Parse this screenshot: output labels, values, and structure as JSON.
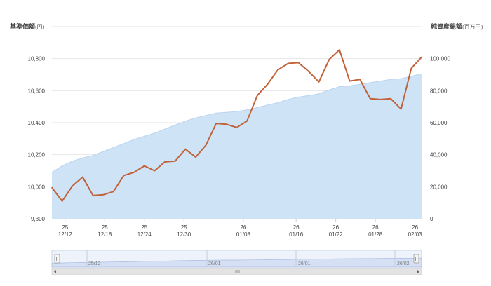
{
  "left_axis": {
    "title": "基準価額",
    "unit": "(円)"
  },
  "right_axis": {
    "title": "純資産総額",
    "unit": "(百万円)"
  },
  "colors": {
    "price_line": "#c0623a",
    "assets_fill": "#cfe3f7",
    "assets_stroke": "#b9d4f1",
    "grid": "#e6e6e6",
    "navigator_fill": "#d6e0f5",
    "navigator_bg": "#eef3fb",
    "scrollbar": "#e3e3e3"
  },
  "navigator": {
    "labels": [
      "25/12",
      "26/01",
      "26/01",
      "26/02"
    ]
  },
  "chart_data": {
    "type": "line",
    "x_tick_labels": [
      {
        "year": "25",
        "date": "12/12"
      },
      {
        "year": "25",
        "date": "12/18"
      },
      {
        "year": "25",
        "date": "12/24"
      },
      {
        "year": "25",
        "date": "12/30"
      },
      {
        "year": "26",
        "date": "01/08"
      },
      {
        "year": "26",
        "date": "01/16"
      },
      {
        "year": "26",
        "date": "01/22"
      },
      {
        "year": "26",
        "date": "01/28"
      },
      {
        "year": "26",
        "date": "02/03"
      }
    ],
    "tick_day_indices": [
      2,
      8,
      14,
      20,
      29,
      37,
      43,
      49,
      55
    ],
    "day_count": 56,
    "y_left": {
      "min": 9800,
      "max": 11000,
      "ticks": [
        9800,
        10000,
        10200,
        10400,
        10600,
        10800
      ]
    },
    "y_right": {
      "min": 0,
      "max": 120000,
      "ticks": [
        0,
        20000,
        40000,
        60000,
        80000,
        100000
      ]
    },
    "series": [
      {
        "axis": "left",
        "type": "line",
        "points": [
          [
            0,
            9995
          ],
          [
            2,
            9910
          ],
          [
            4,
            10005
          ],
          [
            6,
            10060
          ],
          [
            8,
            9945
          ],
          [
            10,
            9950
          ],
          [
            12,
            9970
          ],
          [
            14,
            10070
          ],
          [
            16,
            10090
          ],
          [
            18,
            10130
          ],
          [
            20,
            10100
          ],
          [
            22,
            10155
          ],
          [
            24,
            10160
          ],
          [
            26,
            10235
          ],
          [
            28,
            10185
          ],
          [
            30,
            10260
          ],
          [
            32,
            10395
          ],
          [
            34,
            10390
          ],
          [
            36,
            10370
          ],
          [
            38,
            10410
          ],
          [
            40,
            10570
          ],
          [
            42,
            10640
          ],
          [
            44,
            10730
          ],
          [
            46,
            10770
          ],
          [
            48,
            10775
          ],
          [
            50,
            10720
          ],
          [
            52,
            10655
          ],
          [
            54,
            10795
          ],
          [
            56,
            10855
          ],
          [
            58,
            10660
          ],
          [
            60,
            10670
          ],
          [
            62,
            10550
          ],
          [
            64,
            10545
          ],
          [
            66,
            10550
          ],
          [
            68,
            10485
          ],
          [
            70,
            10740
          ],
          [
            72,
            10810
          ]
        ]
      },
      {
        "axis": "right",
        "type": "area",
        "points": [
          [
            0,
            29000
          ],
          [
            2,
            33000
          ],
          [
            4,
            36000
          ],
          [
            6,
            38000
          ],
          [
            8,
            39500
          ],
          [
            10,
            42000
          ],
          [
            12,
            44500
          ],
          [
            14,
            47000
          ],
          [
            16,
            49500
          ],
          [
            18,
            51500
          ],
          [
            20,
            53500
          ],
          [
            22,
            56000
          ],
          [
            24,
            58500
          ],
          [
            26,
            61000
          ],
          [
            28,
            63000
          ],
          [
            30,
            64500
          ],
          [
            32,
            66000
          ],
          [
            34,
            66500
          ],
          [
            36,
            67000
          ],
          [
            38,
            68000
          ],
          [
            40,
            69500
          ],
          [
            42,
            71000
          ],
          [
            44,
            72500
          ],
          [
            46,
            74500
          ],
          [
            48,
            76000
          ],
          [
            50,
            77000
          ],
          [
            52,
            78000
          ],
          [
            54,
            80500
          ],
          [
            56,
            82500
          ],
          [
            58,
            83000
          ],
          [
            60,
            84000
          ],
          [
            62,
            85000
          ],
          [
            64,
            86000
          ],
          [
            66,
            87000
          ],
          [
            68,
            87500
          ],
          [
            70,
            89000
          ],
          [
            72,
            90500
          ]
        ]
      }
    ]
  }
}
